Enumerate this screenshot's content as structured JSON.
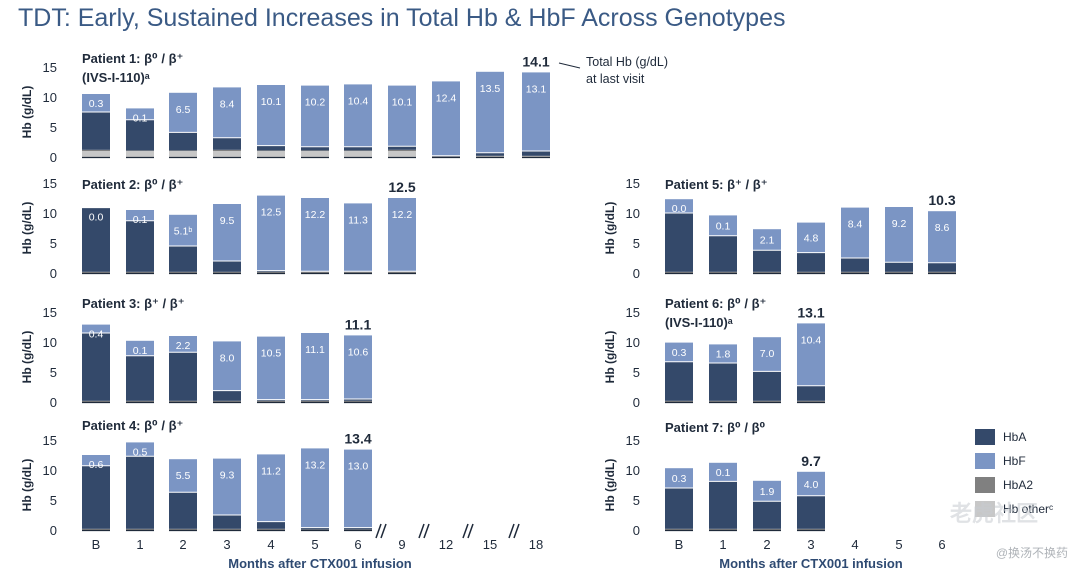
{
  "title": "TDT: Early, Sustained Increases in Total Hb & HbF Across Genotypes",
  "colors": {
    "HbA": "#34496a",
    "HbF": "#7b95c4",
    "HbA2": "#808080",
    "Hb other": "#c7c7c7"
  },
  "chart_data": {
    "type": "bar",
    "stacked": true,
    "ylabel": "Hb (g/dL)",
    "ylim": [
      0,
      15
    ],
    "yticks": [
      0,
      5,
      10,
      15
    ],
    "xlabel": "Months after CTX001 infusion",
    "legend": [
      "HbA",
      "HbF",
      "HbA2",
      "Hb otherᶜ"
    ],
    "annotation": "Total Hb (g/dL)\nat last visit",
    "left_categories": [
      "B",
      "1",
      "2",
      "3",
      "4",
      "5",
      "6",
      "9",
      "12",
      "15",
      "18"
    ],
    "right_categories": [
      "B",
      "1",
      "2",
      "3",
      "4",
      "5",
      "6"
    ],
    "panels": [
      {
        "title": [
          "Patient 1: β⁰ / β⁺",
          "(IVS-I-110)ᵃ"
        ],
        "categories": [
          "B",
          "1",
          "2",
          "3",
          "4",
          "5",
          "6",
          "9",
          "12",
          "15",
          "18"
        ],
        "total": [
          10.5,
          8.1,
          10.7,
          11.6,
          12.0,
          11.9,
          12.1,
          11.9,
          12.6,
          14.2,
          14.1
        ],
        "HbF": [
          0.3,
          0.1,
          6.5,
          8.4,
          10.1,
          10.2,
          10.4,
          10.1,
          12.4,
          13.5,
          13.1
        ],
        "HbA": [
          6.3,
          5.1,
          3.0,
          2.0,
          0.8,
          0.6,
          0.6,
          0.6,
          0.1,
          0.5,
          0.8
        ],
        "HbA2": [
          0.2,
          0.1,
          0.1,
          0.2,
          0.1,
          0.1,
          0.1,
          0.2,
          0.1,
          0.1,
          0.1
        ],
        "other": [
          1.0,
          1.0,
          1.0,
          1.0,
          1.0,
          1.0,
          1.0,
          1.0,
          0.0,
          0.1,
          0.1
        ],
        "labels": [
          "0.3",
          "0.1",
          "6.5",
          "8.4",
          "10.1",
          "10.2",
          "10.4",
          "10.1",
          "12.4",
          "13.5",
          "13.1"
        ],
        "last": "14.1"
      },
      {
        "title": [
          "Patient 2: β⁰ / β⁺"
        ],
        "categories": [
          "B",
          "1",
          "2",
          "3",
          "4",
          "5",
          "6",
          "9"
        ],
        "total": [
          10.9,
          10.5,
          9.7,
          11.5,
          12.9,
          12.5,
          11.6,
          12.5
        ],
        "HbF": [
          0.0,
          0.1,
          5.1,
          9.5,
          12.5,
          12.2,
          11.3,
          12.2
        ],
        "HbA": [
          10.7,
          8.5,
          4.3,
          1.8,
          0.2,
          0.1,
          0.1,
          0.1
        ],
        "HbA2": [
          0.2,
          0.2,
          0.2,
          0.2,
          0.2,
          0.2,
          0.2,
          0.2
        ],
        "other": [
          0,
          0,
          0,
          0,
          0,
          0,
          0,
          0
        ],
        "labels": [
          "0.0",
          "0.1",
          "5.1ᵇ",
          "9.5",
          "12.5",
          "12.2",
          "11.3",
          "12.2"
        ],
        "last": "12.5"
      },
      {
        "title": [
          "Patient 3: β⁺ / β⁺"
        ],
        "categories": [
          "B",
          "1",
          "2",
          "3",
          "4",
          "5",
          "6"
        ],
        "total": [
          12.9,
          10.2,
          11.0,
          10.1,
          10.9,
          11.5,
          11.1
        ],
        "HbF": [
          0.4,
          0.1,
          2.2,
          8.0,
          10.5,
          11.1,
          10.6
        ],
        "HbA": [
          11.3,
          7.5,
          8.1,
          1.7,
          0.2,
          0.2,
          0.3
        ],
        "HbA2": [
          0.2,
          0.2,
          0.2,
          0.2,
          0.2,
          0.2,
          0.2
        ],
        "other": [
          0,
          0,
          0,
          0,
          0,
          0,
          0
        ],
        "labels": [
          "0.4",
          "0.1",
          "2.2",
          "8.0",
          "10.5",
          "11.1",
          "10.6"
        ],
        "last": "11.1"
      },
      {
        "title": [
          "Patient 4: β⁰ / β⁺"
        ],
        "categories": [
          "B",
          "1",
          "2",
          "3",
          "4",
          "5",
          "6"
        ],
        "total": [
          12.5,
          14.6,
          11.8,
          11.9,
          12.6,
          13.6,
          13.4
        ],
        "HbF": [
          0.6,
          0.5,
          5.5,
          9.3,
          11.2,
          13.2,
          13.0
        ],
        "HbA": [
          10.5,
          12.1,
          6.1,
          2.3,
          1.2,
          0.3,
          0.3
        ],
        "HbA2": [
          0.2,
          0.2,
          0.2,
          0.2,
          0.2,
          0.1,
          0.1
        ],
        "other": [
          0,
          0,
          0,
          0,
          0,
          0,
          0
        ],
        "labels": [
          "0.6",
          "0.5",
          "5.5",
          "9.3",
          "11.2",
          "13.2",
          "13.0"
        ],
        "last": "13.4"
      },
      {
        "title": [
          "Patient 5: β⁺ / β⁺"
        ],
        "categories": [
          "B",
          "1",
          "2",
          "3",
          "4",
          "5",
          "6"
        ],
        "total": [
          12.3,
          9.6,
          7.3,
          8.4,
          10.9,
          11.0,
          10.3
        ],
        "HbF": [
          0.0,
          0.1,
          2.1,
          4.8,
          8.4,
          9.2,
          8.6
        ],
        "HbA": [
          9.8,
          6.0,
          3.6,
          3.2,
          2.3,
          1.6,
          1.5
        ],
        "HbA2": [
          0.2,
          0.2,
          0.2,
          0.2,
          0.2,
          0.2,
          0.2
        ],
        "other": [
          0,
          0,
          0,
          0,
          0,
          0,
          0
        ],
        "labels": [
          "0.0",
          "0.1",
          "2.1",
          "4.8",
          "8.4",
          "9.2",
          "8.6"
        ],
        "last": "10.3"
      },
      {
        "title": [
          "Patient 6: β⁰ / β⁺",
          "(IVS-I-110)ᵃ"
        ],
        "categories": [
          "B",
          "1",
          "2",
          "3"
        ],
        "total": [
          9.9,
          9.6,
          10.8,
          13.1
        ],
        "HbF": [
          0.3,
          1.8,
          7.0,
          10.4
        ],
        "HbA": [
          6.5,
          6.3,
          4.9,
          2.5
        ],
        "HbA2": [
          0.2,
          0.2,
          0.2,
          0.2
        ],
        "other": [
          0,
          0,
          0,
          0
        ],
        "labels": [
          "0.3",
          "1.8",
          "7.0",
          "10.4"
        ],
        "last": "13.1"
      },
      {
        "title": [
          "Patient 7: β⁰ / β⁰"
        ],
        "categories": [
          "B",
          "1",
          "2",
          "3"
        ],
        "total": [
          10.3,
          11.2,
          8.2,
          9.7
        ],
        "HbF": [
          0.3,
          0.1,
          1.9,
          4.0
        ],
        "HbA": [
          6.8,
          7.9,
          4.6,
          5.5
        ],
        "HbA2": [
          0.2,
          0.2,
          0.2,
          0.2
        ],
        "other": [
          0,
          0,
          0,
          0
        ],
        "labels": [
          "0.3",
          "0.1",
          "1.9",
          "4.0"
        ],
        "last": "9.7"
      }
    ]
  },
  "watermark": {
    "brand": "老虎社区",
    "handle": "@换汤不换药"
  }
}
